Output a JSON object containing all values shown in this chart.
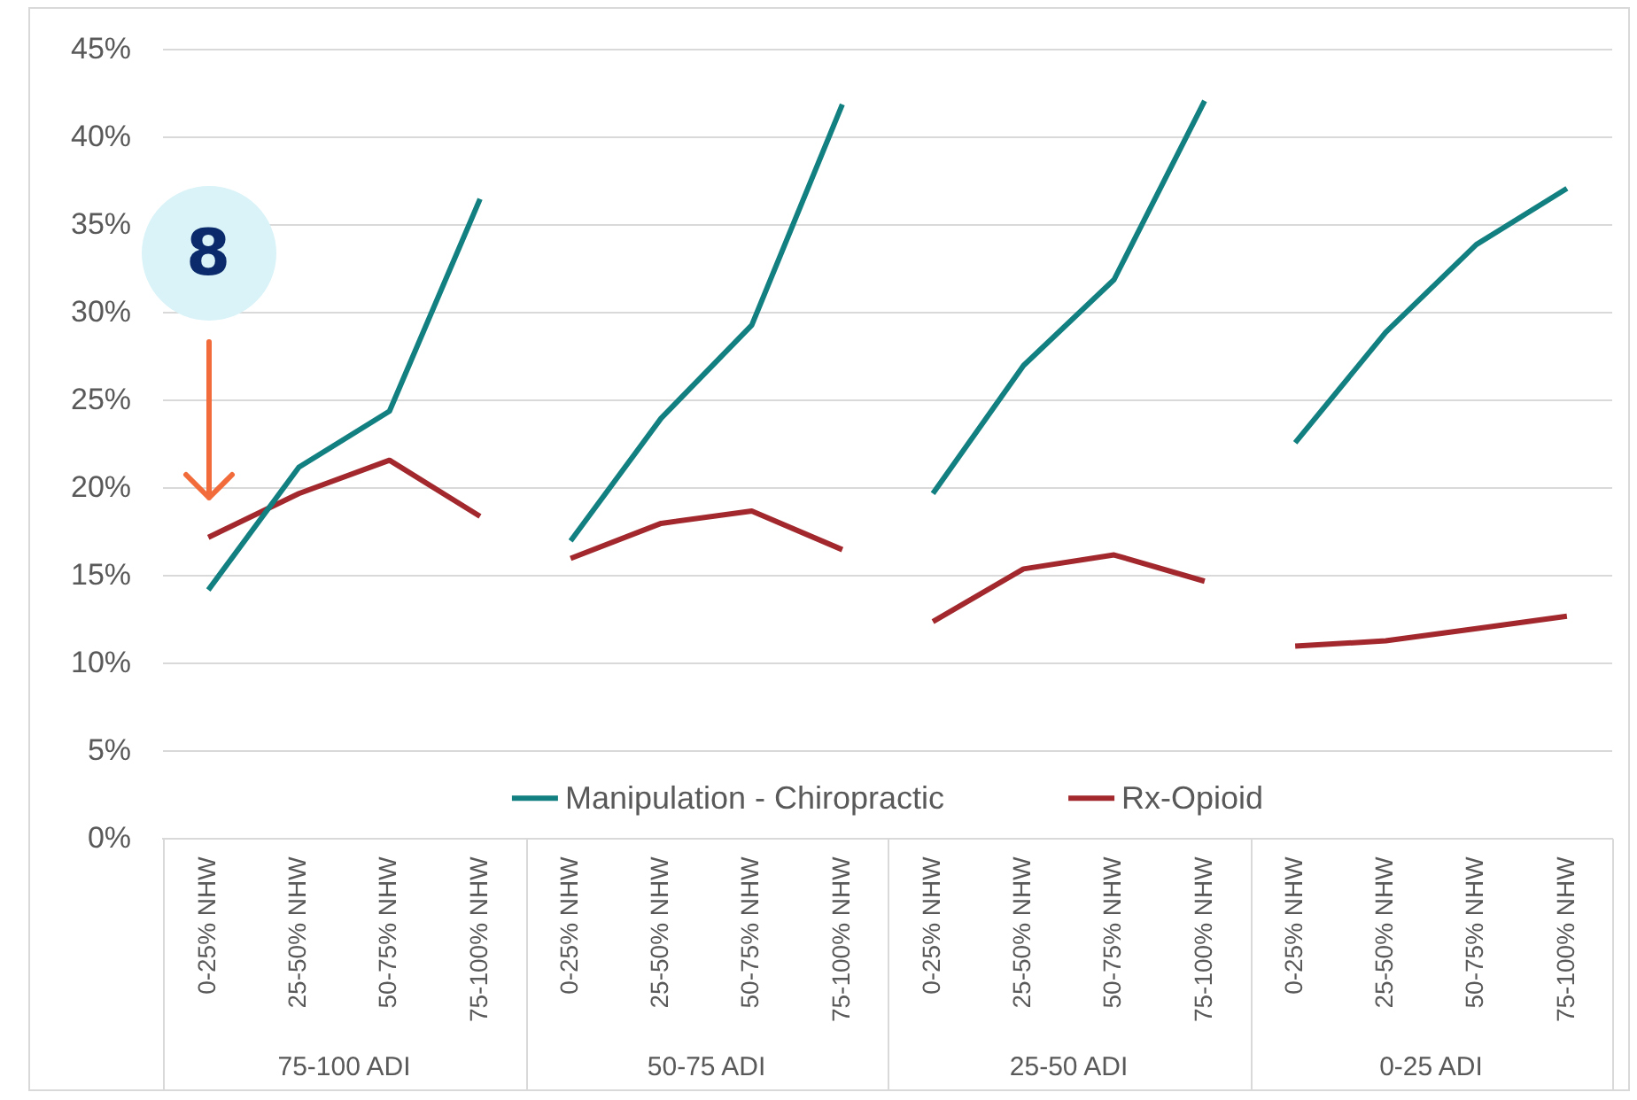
{
  "chart_data": {
    "type": "line",
    "categories": [
      "0-25% NHW",
      "25-50% NHW",
      "50-75% NHW",
      "75-100% NHW",
      "0-25% NHW",
      "25-50% NHW",
      "50-75% NHW",
      "75-100% NHW",
      "0-25% NHW",
      "25-50% NHW",
      "50-75% NHW",
      "75-100% NHW",
      "0-25% NHW",
      "25-50% NHW",
      "50-75% NHW",
      "75-100% NHW"
    ],
    "series": [
      {
        "name": "Manipulation - Chiropractic",
        "color": "#127f80",
        "values": [
          14.2,
          21.2,
          24.4,
          36.5,
          17.0,
          24.0,
          29.3,
          41.9,
          19.7,
          27.0,
          31.9,
          42.1,
          22.6,
          28.9,
          33.9,
          37.1
        ]
      },
      {
        "name": "Rx-Opioid",
        "color": "#a2282d",
        "values": [
          17.2,
          19.7,
          21.6,
          18.4,
          16.0,
          18.0,
          18.7,
          16.5,
          12.4,
          15.4,
          16.2,
          14.7,
          11.0,
          11.3,
          12.0,
          12.7
        ]
      }
    ],
    "ylim": [
      0,
      45
    ],
    "yticks": [
      {
        "value": 0,
        "label": "0%"
      },
      {
        "value": 5,
        "label": "5%"
      },
      {
        "value": 10,
        "label": "10%"
      },
      {
        "value": 15,
        "label": "15%"
      },
      {
        "value": 20,
        "label": "20%"
      },
      {
        "value": 25,
        "label": "25%"
      },
      {
        "value": 30,
        "label": "30%"
      },
      {
        "value": 35,
        "label": "35%"
      },
      {
        "value": 40,
        "label": "40%"
      },
      {
        "value": 45,
        "label": "45%"
      }
    ],
    "grid": "y",
    "legend": "bottom",
    "marker": "none",
    "line_style": "solid",
    "annotations": [
      "75-100 ADI",
      "50-75 ADI",
      "25-50 ADI",
      "0-25 ADI",
      "8"
    ]
  }
}
